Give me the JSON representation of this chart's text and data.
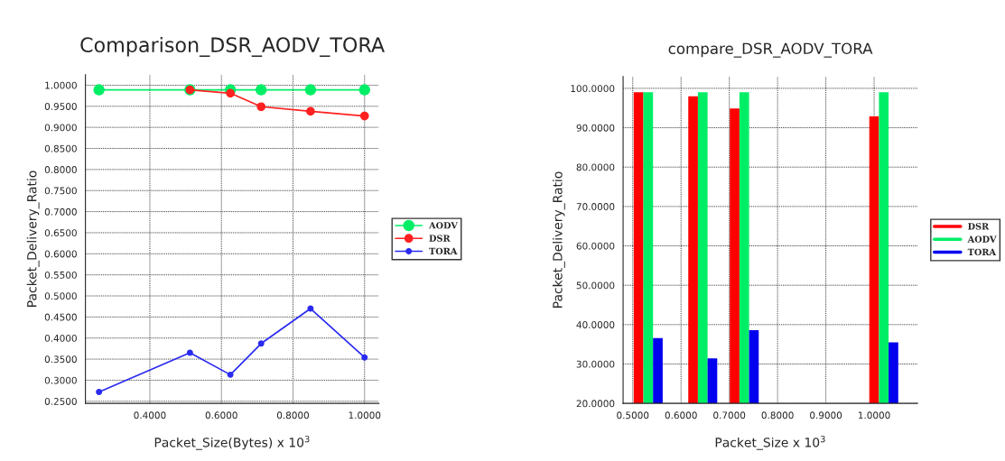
{
  "chart_data": [
    {
      "type": "line",
      "title": "Comparison_DSR_AODV_TORA",
      "xlabel": "Packet_Size(Bytes) x 10$^{3}$",
      "ylabel": "Packet_Delivery_Ratio",
      "xlim": [
        0.22,
        1.04
      ],
      "ylim": [
        0.245,
        1.025
      ],
      "xticks": [
        {
          "value": 0.4,
          "label": "0.4000"
        },
        {
          "value": 0.6,
          "label": "0.6000"
        },
        {
          "value": 0.8,
          "label": "0.8000"
        },
        {
          "value": 1.0,
          "label": "1.0000"
        }
      ],
      "yticks": [
        {
          "value": 0.25,
          "label": "0.2500"
        },
        {
          "value": 0.3,
          "label": "0.3000"
        },
        {
          "value": 0.35,
          "label": "0.3500"
        },
        {
          "value": 0.4,
          "label": "0.4000"
        },
        {
          "value": 0.45,
          "label": "0.4500"
        },
        {
          "value": 0.5,
          "label": "0.5000"
        },
        {
          "value": 0.55,
          "label": "0.5500"
        },
        {
          "value": 0.6,
          "label": "0.6000"
        },
        {
          "value": 0.65,
          "label": "0.6500"
        },
        {
          "value": 0.7,
          "label": "0.7000"
        },
        {
          "value": 0.75,
          "label": "0.7500"
        },
        {
          "value": 0.8,
          "label": "0.8000"
        },
        {
          "value": 0.85,
          "label": "0.8500"
        },
        {
          "value": 0.9,
          "label": "0.9000"
        },
        {
          "value": 0.95,
          "label": "0.9500"
        },
        {
          "value": 1.0,
          "label": "1.0000"
        }
      ],
      "series": [
        {
          "name": "AODV",
          "color": "#00ee66",
          "x": [
            0.258,
            0.512,
            0.625,
            0.711,
            0.849,
            1.0
          ],
          "values": [
            0.989,
            0.989,
            0.989,
            0.989,
            0.989,
            0.989
          ]
        },
        {
          "name": "DSR",
          "color": "#ff2020",
          "x": [
            0.512,
            0.625,
            0.711,
            0.849,
            1.0
          ],
          "values": [
            0.989,
            0.981,
            0.949,
            0.938,
            0.927
          ]
        },
        {
          "name": "TORA",
          "color": "#2a2af0",
          "x": [
            0.258,
            0.512,
            0.625,
            0.711,
            0.849,
            1.0
          ],
          "values": [
            0.272,
            0.365,
            0.313,
            0.387,
            0.47,
            0.354
          ]
        }
      ],
      "marker": "circle",
      "line_style": "solid",
      "grid": true,
      "legend": "right"
    },
    {
      "type": "bar",
      "title": "compare_DSR_AODV_TORA",
      "xlabel": "Packet_Size x 10$^{3}$",
      "ylabel": "Packet_Delivery_Ratio",
      "xlim": [
        0.48,
        1.09
      ],
      "ylim": [
        20,
        103
      ],
      "xticks": [
        {
          "value": 0.5,
          "label": "0.5000"
        },
        {
          "value": 0.6,
          "label": "0.6000"
        },
        {
          "value": 0.7,
          "label": "0.7000"
        },
        {
          "value": 0.8,
          "label": "0.8000"
        },
        {
          "value": 0.9,
          "label": "0.9000"
        },
        {
          "value": 1.0,
          "label": "1.0000"
        }
      ],
      "yticks": [
        {
          "value": 20,
          "label": "20.0000"
        },
        {
          "value": 30,
          "label": "30.0000"
        },
        {
          "value": 40,
          "label": "40.0000"
        },
        {
          "value": 50,
          "label": "50.0000"
        },
        {
          "value": 60,
          "label": "60.0000"
        },
        {
          "value": 70,
          "label": "70.0000"
        },
        {
          "value": 80,
          "label": "80.0000"
        },
        {
          "value": 90,
          "label": "90.0000"
        },
        {
          "value": 100,
          "label": "100.0000"
        }
      ],
      "x": [
        0.512,
        0.625,
        0.711,
        1.0
      ],
      "series": [
        {
          "name": "DSR",
          "color": "#ff0000",
          "values": [
            99.0,
            98.0,
            94.9,
            92.9
          ]
        },
        {
          "name": "AODV",
          "color": "#00ee66",
          "values": [
            99.0,
            99.0,
            99.0,
            99.0
          ]
        },
        {
          "name": "TORA",
          "color": "#0000ee",
          "values": [
            36.6,
            31.4,
            38.6,
            35.5
          ]
        }
      ],
      "grid": true,
      "legend": "right"
    }
  ]
}
